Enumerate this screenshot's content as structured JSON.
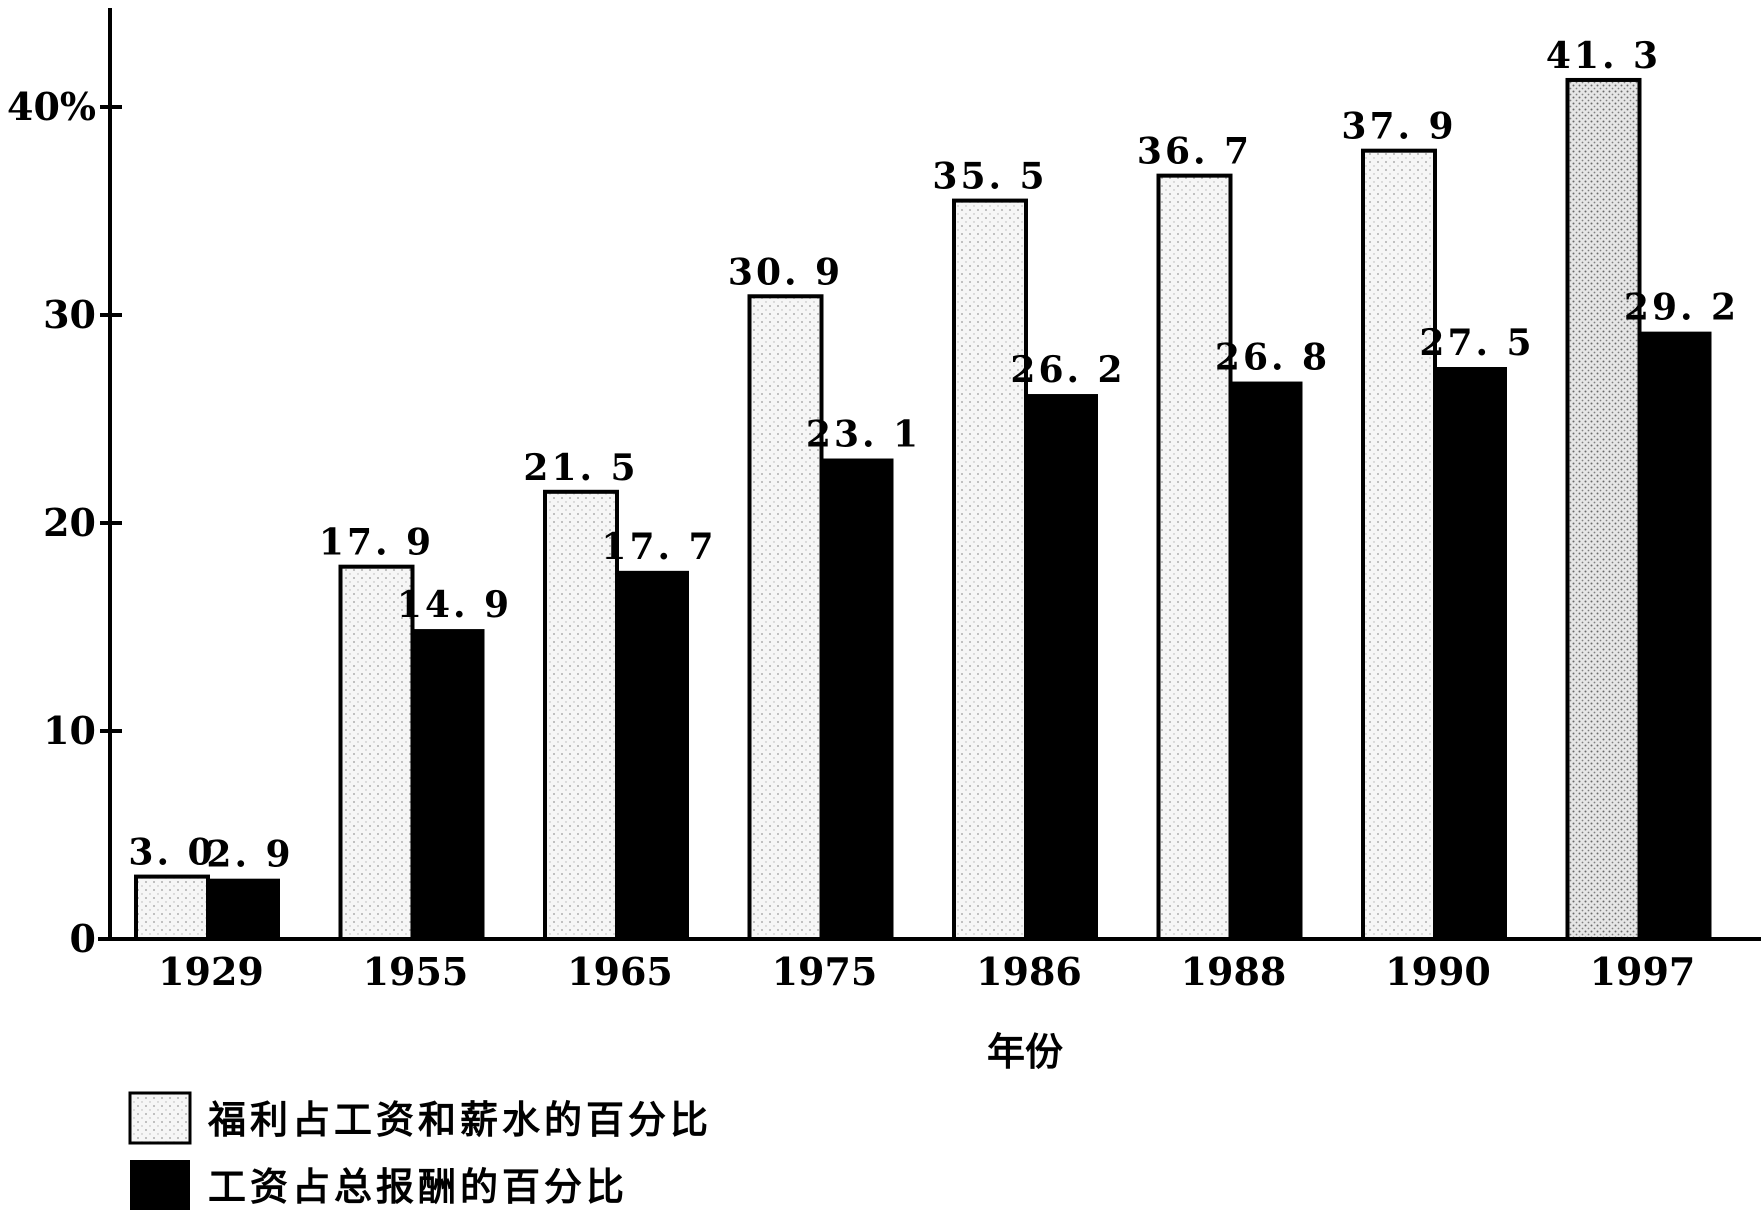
{
  "chart_data": {
    "type": "bar",
    "xlabel": "年份",
    "ylabel": "",
    "ylim": [
      0,
      45
    ],
    "yticks": [
      "0",
      "10",
      "20",
      "30",
      "40%"
    ],
    "ytick_values": [
      0,
      10,
      20,
      30,
      40
    ],
    "categories": [
      "1929",
      "1955",
      "1965",
      "1975",
      "1986",
      "1988",
      "1990",
      "1997"
    ],
    "series": [
      {
        "name": "福利占工资和薪水的百分比",
        "values": [
          3.0,
          17.9,
          21.5,
          30.9,
          35.5,
          36.7,
          37.9,
          41.3
        ],
        "labels": [
          "3. 0",
          "17. 9",
          "21. 5",
          "30. 9",
          "35. 5",
          "36. 7",
          "37. 9",
          "41. 3"
        ]
      },
      {
        "name": "工资占总报酬的百分比",
        "values": [
          2.9,
          14.9,
          17.7,
          23.1,
          26.2,
          26.8,
          27.5,
          29.2
        ],
        "labels": [
          "2. 9",
          "14. 9",
          "17. 7",
          "23. 1",
          "26. 2",
          "26. 8",
          "27. 5",
          "29. 2"
        ]
      }
    ],
    "legend_position": "bottom-left",
    "grid": false,
    "colors": {
      "series_1_fill": "#f4f4f4",
      "series_1_stroke": "#000000",
      "series_2_fill": "#000000"
    }
  }
}
